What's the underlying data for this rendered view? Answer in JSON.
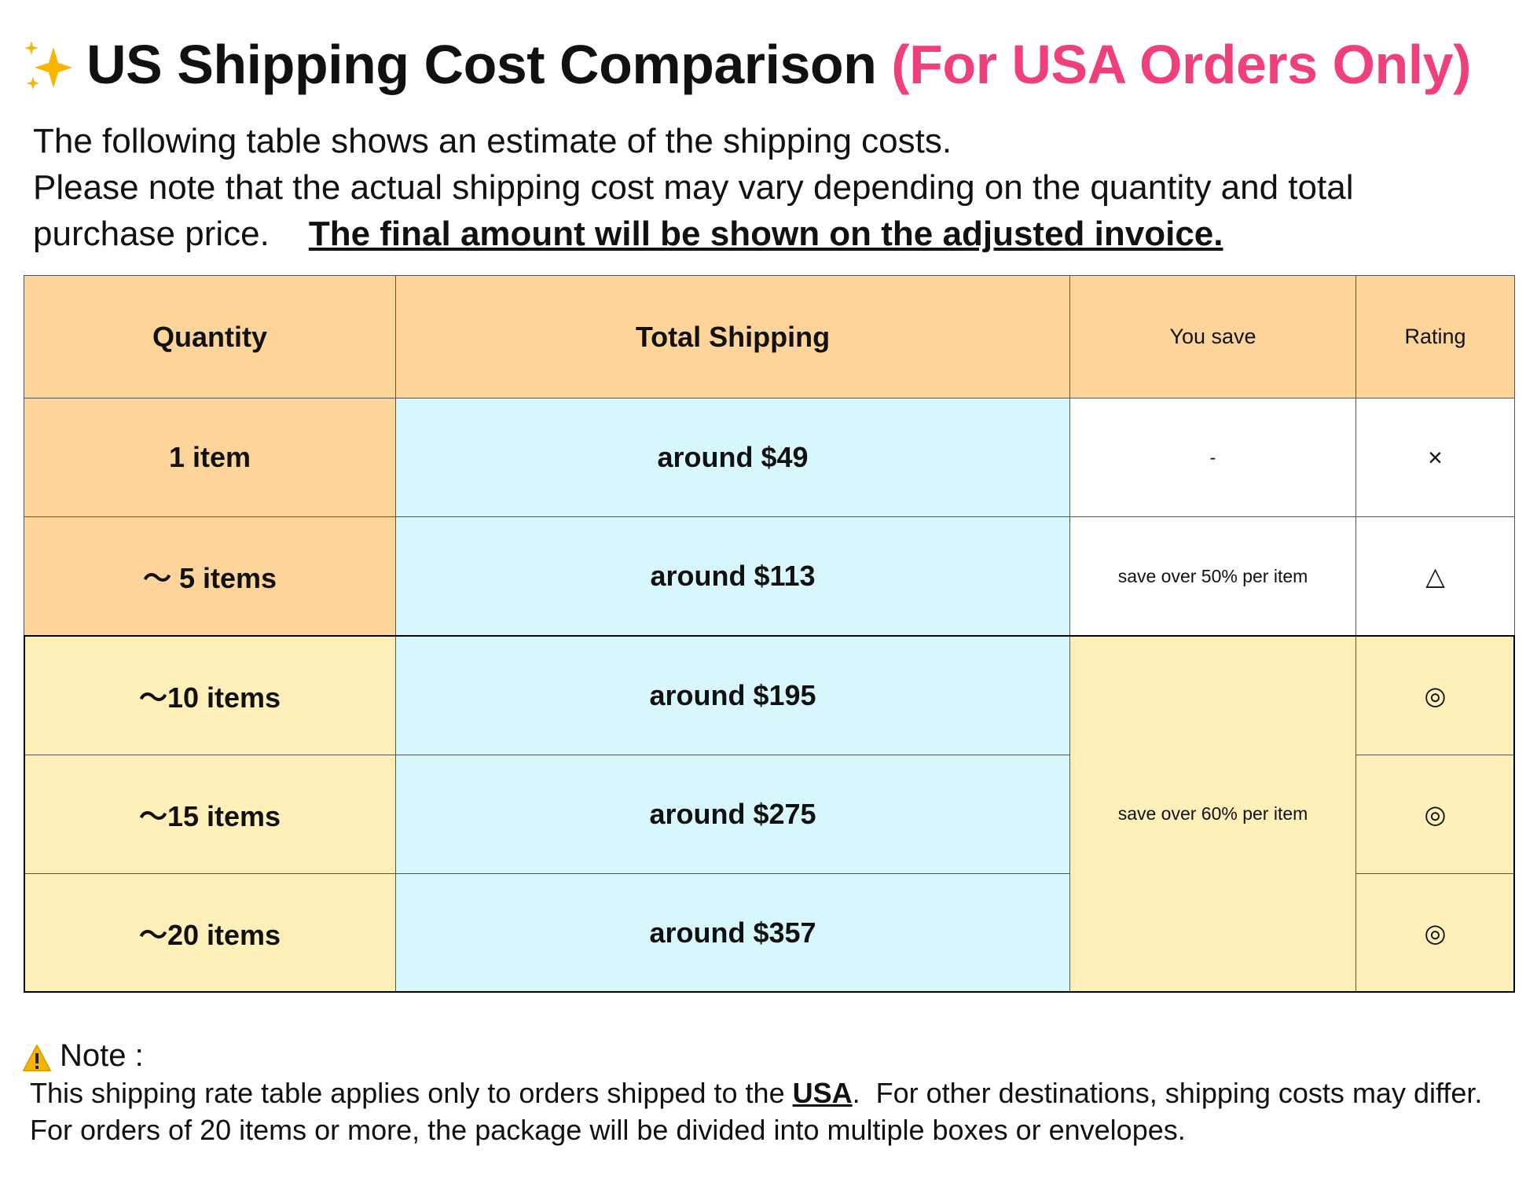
{
  "header": {
    "title": "US Shipping Cost Comparison",
    "title_highlight": "(For USA Orders Only)"
  },
  "intro": {
    "line1": "The following table shows an estimate of the shipping costs.",
    "line2": "Please note that the actual shipping cost may vary depending on the quantity and total purchase price.",
    "emphasis": "The final amount will be shown on the adjusted invoice."
  },
  "table": {
    "columns": [
      "Quantity",
      "Total Shipping",
      "You save",
      "Rating"
    ],
    "rows": [
      {
        "quantity": "1 item",
        "shipping": "around $49",
        "save": "-",
        "rating": "×"
      },
      {
        "quantity": "～ 5 items",
        "shipping": "around $113",
        "save": "save over 50% per item",
        "rating": "△"
      },
      {
        "quantity": "～10 items",
        "shipping": "around $195",
        "save": "save over 60% per item",
        "rating": "◎"
      },
      {
        "quantity": "～15 items",
        "shipping": "around $275",
        "rating": "◎"
      },
      {
        "quantity": "～20 items",
        "shipping": "around $357",
        "rating": "◎"
      }
    ]
  },
  "note": {
    "title": "Note :",
    "line1_before": "This shipping rate table applies only to orders shipped to the ",
    "line1_strong": "USA",
    "line1_after": ".  For other destinations, shipping costs may differ.",
    "line2": "For orders of 20 items or more, the package will be divided into multiple boxes or envelopes."
  }
}
